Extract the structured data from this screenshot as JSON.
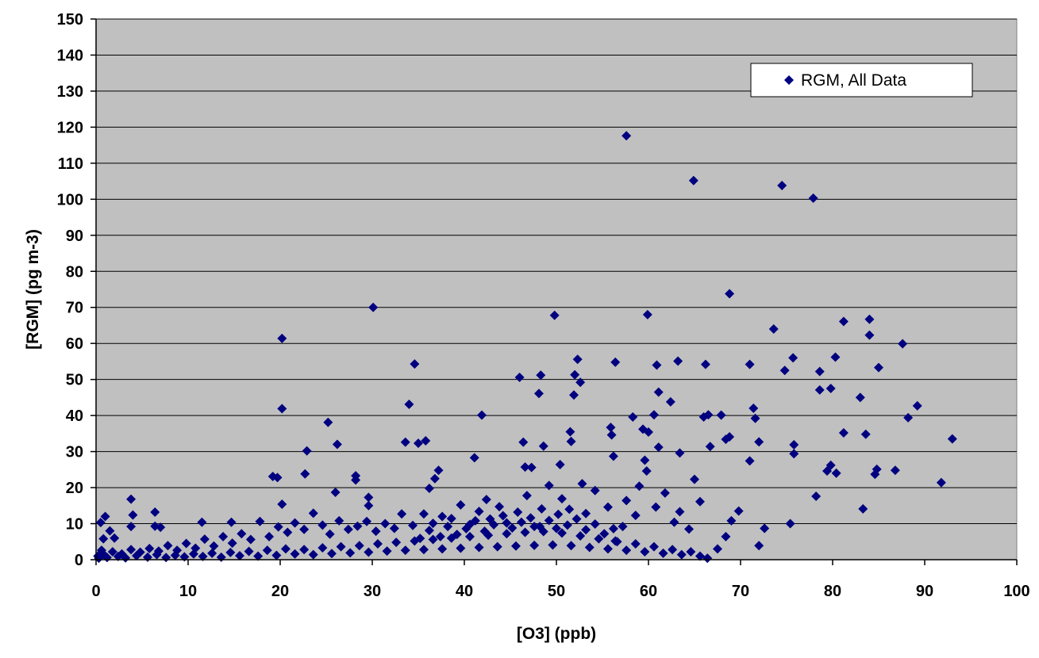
{
  "chart_data": {
    "type": "scatter",
    "title": "",
    "xlabel": "[O3] (ppb)",
    "ylabel": "[RGM] (pg m-3)",
    "xlim": [
      0,
      100
    ],
    "ylim": [
      0,
      150
    ],
    "x_ticks": [
      "0",
      "10",
      "20",
      "30",
      "40",
      "50",
      "60",
      "70",
      "80",
      "90",
      "100"
    ],
    "y_ticks": [
      "0",
      "10",
      "20",
      "30",
      "40",
      "50",
      "60",
      "70",
      "80",
      "90",
      "100",
      "110",
      "120",
      "130",
      "140",
      "150"
    ],
    "grid": "horizontal",
    "plot_background": "#C0C0C0",
    "marker": "diamond",
    "marker_color": "#000080",
    "legend": {
      "position": "top-right",
      "entries": [
        "RGM, All Data"
      ]
    },
    "series": [
      {
        "name": "RGM, All Data",
        "color": "#000080",
        "points": [
          [
            0.5,
            10.3
          ],
          [
            1.0,
            12.0
          ],
          [
            0.8,
            5.8
          ],
          [
            1.5,
            8.0
          ],
          [
            2.0,
            6.0
          ],
          [
            3.8,
            16.8
          ],
          [
            4.0,
            12.4
          ],
          [
            3.8,
            9.2
          ],
          [
            6.4,
            13.2
          ],
          [
            6.4,
            9.3
          ],
          [
            7.0,
            9.0
          ],
          [
            11.5,
            10.4
          ],
          [
            14.7,
            10.4
          ],
          [
            19.2,
            23.1
          ],
          [
            19.7,
            22.8
          ],
          [
            20.2,
            61.4
          ],
          [
            20.2,
            41.9
          ],
          [
            20.2,
            15.4
          ],
          [
            22.9,
            30.2
          ],
          [
            22.7,
            23.8
          ],
          [
            25.2,
            38.1
          ],
          [
            26.2,
            32.0
          ],
          [
            26.0,
            18.7
          ],
          [
            28.2,
            23.3
          ],
          [
            28.2,
            22.1
          ],
          [
            30.1,
            70.0
          ],
          [
            29.6,
            17.3
          ],
          [
            29.6,
            15.0
          ],
          [
            33.6,
            32.6
          ],
          [
            34.0,
            43.1
          ],
          [
            34.6,
            54.3
          ],
          [
            35.0,
            32.3
          ],
          [
            35.8,
            33.0
          ],
          [
            37.2,
            24.8
          ],
          [
            36.8,
            22.5
          ],
          [
            36.2,
            19.8
          ],
          [
            41.1,
            28.3
          ],
          [
            41.9,
            40.1
          ],
          [
            42.4,
            16.7
          ],
          [
            46.0,
            50.6
          ],
          [
            46.4,
            32.6
          ],
          [
            46.6,
            25.7
          ],
          [
            47.3,
            25.6
          ],
          [
            48.3,
            51.2
          ],
          [
            48.1,
            46.1
          ],
          [
            48.6,
            31.5
          ],
          [
            49.8,
            67.8
          ],
          [
            50.4,
            26.4
          ],
          [
            51.5,
            35.5
          ],
          [
            51.6,
            32.8
          ],
          [
            51.9,
            45.7
          ],
          [
            52.0,
            51.3
          ],
          [
            52.3,
            55.6
          ],
          [
            52.6,
            49.2
          ],
          [
            56.4,
            54.8
          ],
          [
            55.9,
            36.7
          ],
          [
            56.0,
            34.6
          ],
          [
            56.2,
            28.7
          ],
          [
            57.6,
            117.6
          ],
          [
            58.3,
            39.6
          ],
          [
            59.4,
            36.2
          ],
          [
            59.6,
            27.6
          ],
          [
            59.9,
            68.0
          ],
          [
            60.0,
            35.4
          ],
          [
            60.6,
            40.2
          ],
          [
            60.9,
            54.0
          ],
          [
            61.1,
            46.5
          ],
          [
            61.1,
            31.2
          ],
          [
            62.4,
            43.8
          ],
          [
            63.2,
            55.1
          ],
          [
            63.4,
            29.6
          ],
          [
            64.9,
            105.2
          ],
          [
            66.2,
            54.2
          ],
          [
            66.0,
            39.6
          ],
          [
            66.5,
            40.2
          ],
          [
            66.7,
            31.4
          ],
          [
            67.9,
            40.1
          ],
          [
            68.8,
            73.8
          ],
          [
            68.8,
            34.1
          ],
          [
            68.4,
            33.4
          ],
          [
            71.0,
            54.2
          ],
          [
            71.0,
            27.4
          ],
          [
            71.4,
            42.0
          ],
          [
            71.6,
            39.2
          ],
          [
            72.0,
            32.7
          ],
          [
            73.6,
            64.0
          ],
          [
            74.5,
            103.8
          ],
          [
            74.8,
            52.5
          ],
          [
            75.7,
            56.0
          ],
          [
            75.8,
            31.9
          ],
          [
            75.8,
            29.4
          ],
          [
            77.9,
            100.3
          ],
          [
            78.6,
            52.2
          ],
          [
            78.6,
            47.1
          ],
          [
            79.8,
            47.5
          ],
          [
            80.3,
            56.2
          ],
          [
            81.2,
            66.1
          ],
          [
            81.2,
            35.2
          ],
          [
            83.0,
            45.0
          ],
          [
            83.6,
            34.8
          ],
          [
            84.0,
            66.7
          ],
          [
            84.0,
            62.3
          ],
          [
            85.0,
            53.3
          ],
          [
            86.8,
            24.8
          ],
          [
            87.6,
            59.9
          ],
          [
            88.2,
            39.4
          ],
          [
            89.2,
            42.7
          ],
          [
            91.8,
            21.4
          ],
          [
            93.0,
            33.5
          ],
          [
            79.8,
            26.2
          ],
          [
            79.4,
            24.6
          ],
          [
            80.4,
            24.0
          ],
          [
            84.6,
            23.7
          ],
          [
            84.8,
            25.1
          ],
          [
            83.3,
            14.1
          ],
          [
            78.2,
            17.6
          ],
          [
            75.4,
            10.0
          ],
          [
            72.6,
            8.7
          ],
          [
            72.0,
            3.9
          ],
          [
            69.8,
            13.5
          ],
          [
            69.0,
            10.8
          ],
          [
            68.4,
            6.4
          ],
          [
            67.5,
            3.0
          ],
          [
            66.4,
            0.4
          ],
          [
            65.0,
            22.3
          ],
          [
            65.6,
            16.1
          ],
          [
            64.4,
            8.5
          ],
          [
            63.4,
            13.3
          ],
          [
            62.8,
            10.4
          ],
          [
            61.8,
            18.5
          ],
          [
            60.8,
            14.6
          ],
          [
            59.8,
            24.6
          ],
          [
            59.0,
            20.4
          ],
          [
            58.6,
            12.3
          ],
          [
            57.6,
            16.4
          ],
          [
            57.2,
            9.2
          ],
          [
            56.4,
            5.2
          ],
          [
            55.6,
            14.6
          ],
          [
            54.2,
            19.2
          ],
          [
            53.2,
            12.8
          ],
          [
            52.8,
            21.1
          ],
          [
            51.4,
            14.0
          ],
          [
            50.6,
            16.9
          ],
          [
            50.0,
            8.7
          ],
          [
            49.2,
            20.6
          ],
          [
            48.4,
            14.1
          ],
          [
            47.6,
            9.2
          ],
          [
            46.8,
            17.8
          ],
          [
            45.8,
            13.2
          ],
          [
            44.6,
            10.2
          ],
          [
            43.8,
            14.7
          ],
          [
            42.8,
            11.3
          ],
          [
            41.6,
            13.4
          ],
          [
            40.6,
            9.8
          ],
          [
            39.6,
            15.2
          ],
          [
            38.6,
            11.4
          ],
          [
            37.6,
            12.0
          ],
          [
            36.6,
            10.1
          ],
          [
            35.6,
            12.7
          ],
          [
            34.4,
            9.5
          ],
          [
            33.2,
            12.7
          ],
          [
            32.4,
            8.7
          ],
          [
            31.4,
            10.0
          ],
          [
            30.4,
            7.9
          ],
          [
            29.4,
            10.6
          ],
          [
            28.4,
            9.3
          ],
          [
            27.4,
            8.4
          ],
          [
            26.4,
            10.8
          ],
          [
            25.4,
            7.1
          ],
          [
            24.6,
            9.6
          ],
          [
            23.6,
            12.9
          ],
          [
            22.6,
            8.4
          ],
          [
            21.6,
            10.2
          ],
          [
            20.8,
            7.6
          ],
          [
            19.8,
            9.1
          ],
          [
            18.8,
            6.4
          ],
          [
            17.8,
            10.6
          ],
          [
            16.8,
            5.6
          ],
          [
            15.8,
            7.2
          ],
          [
            14.8,
            4.6
          ],
          [
            13.8,
            6.4
          ],
          [
            12.8,
            3.8
          ],
          [
            11.8,
            5.7
          ],
          [
            10.8,
            3.2
          ],
          [
            9.8,
            4.5
          ],
          [
            8.8,
            2.6
          ],
          [
            7.8,
            3.9
          ],
          [
            6.8,
            2.4
          ],
          [
            5.8,
            3.1
          ],
          [
            4.8,
            2.1
          ],
          [
            3.8,
            2.8
          ],
          [
            2.8,
            1.6
          ],
          [
            1.8,
            2.2
          ],
          [
            0.8,
            1.5
          ],
          [
            0.3,
            0.4
          ],
          [
            0.2,
            1.0
          ],
          [
            0.6,
            2.6
          ],
          [
            1.2,
            0.6
          ],
          [
            2.4,
            0.9
          ],
          [
            3.2,
            0.5
          ],
          [
            4.4,
            1.1
          ],
          [
            5.6,
            0.7
          ],
          [
            6.6,
            1.4
          ],
          [
            7.6,
            0.6
          ],
          [
            8.6,
            1.2
          ],
          [
            9.6,
            0.8
          ],
          [
            10.6,
            1.6
          ],
          [
            11.6,
            0.9
          ],
          [
            12.6,
            1.8
          ],
          [
            13.6,
            0.7
          ],
          [
            14.6,
            2.0
          ],
          [
            15.6,
            1.1
          ],
          [
            16.6,
            2.3
          ],
          [
            17.6,
            1.0
          ],
          [
            18.6,
            2.6
          ],
          [
            19.6,
            1.2
          ],
          [
            20.6,
            3.0
          ],
          [
            21.6,
            1.6
          ],
          [
            22.6,
            2.8
          ],
          [
            23.6,
            1.4
          ],
          [
            24.6,
            3.3
          ],
          [
            25.6,
            1.7
          ],
          [
            26.6,
            3.6
          ],
          [
            27.6,
            1.9
          ],
          [
            28.6,
            3.9
          ],
          [
            29.6,
            2.1
          ],
          [
            30.6,
            4.4
          ],
          [
            31.6,
            2.4
          ],
          [
            32.6,
            4.8
          ],
          [
            33.6,
            2.6
          ],
          [
            34.6,
            5.2
          ],
          [
            35.6,
            2.8
          ],
          [
            36.6,
            5.6
          ],
          [
            37.6,
            3.0
          ],
          [
            38.6,
            6.0
          ],
          [
            39.6,
            3.2
          ],
          [
            40.6,
            6.4
          ],
          [
            41.6,
            3.4
          ],
          [
            42.6,
            6.8
          ],
          [
            43.6,
            3.6
          ],
          [
            44.6,
            7.2
          ],
          [
            45.6,
            3.8
          ],
          [
            46.6,
            7.6
          ],
          [
            47.6,
            4.0
          ],
          [
            48.6,
            7.8
          ],
          [
            49.6,
            4.1
          ],
          [
            50.6,
            7.4
          ],
          [
            51.6,
            3.9
          ],
          [
            52.6,
            6.6
          ],
          [
            53.6,
            3.4
          ],
          [
            54.6,
            5.8
          ],
          [
            55.6,
            3.0
          ],
          [
            56.6,
            5.0
          ],
          [
            57.6,
            2.6
          ],
          [
            58.6,
            4.4
          ],
          [
            59.6,
            2.2
          ],
          [
            60.6,
            3.6
          ],
          [
            61.6,
            1.8
          ],
          [
            62.6,
            2.8
          ],
          [
            63.6,
            1.4
          ],
          [
            64.6,
            2.2
          ],
          [
            65.6,
            1.0
          ],
          [
            35.2,
            5.9
          ],
          [
            36.2,
            8.1
          ],
          [
            37.4,
            6.4
          ],
          [
            38.2,
            9.2
          ],
          [
            39.2,
            7.0
          ],
          [
            40.2,
            8.6
          ],
          [
            41.2,
            10.8
          ],
          [
            42.2,
            7.9
          ],
          [
            43.2,
            9.7
          ],
          [
            44.2,
            12.2
          ],
          [
            45.2,
            8.8
          ],
          [
            46.2,
            10.4
          ],
          [
            47.2,
            11.6
          ],
          [
            48.2,
            9.2
          ],
          [
            49.2,
            10.9
          ],
          [
            50.2,
            12.6
          ],
          [
            51.2,
            9.6
          ],
          [
            52.2,
            11.3
          ],
          [
            53.2,
            8.3
          ],
          [
            54.2,
            9.9
          ],
          [
            55.2,
            7.2
          ],
          [
            56.2,
            8.6
          ]
        ]
      }
    ]
  }
}
